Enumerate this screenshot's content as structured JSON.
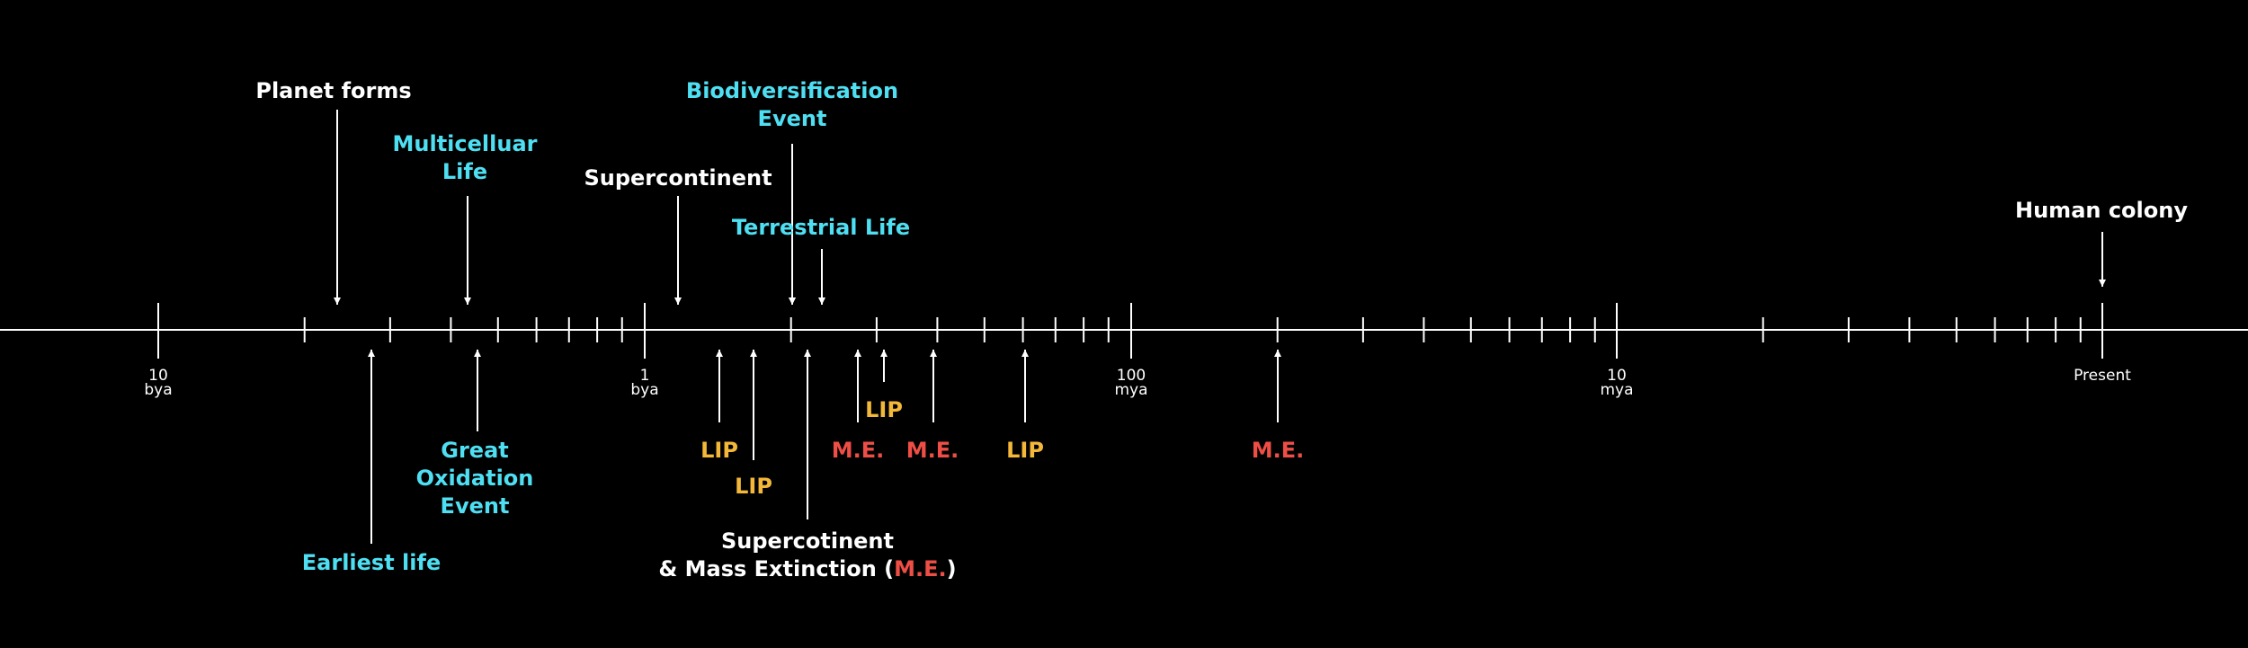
{
  "colors": {
    "background": "#000000",
    "axis": "#ffffff",
    "white": "#ffffff",
    "cyan": "#4fdff2",
    "yellow": "#f3b83a",
    "red": "#ee4e45"
  },
  "axis_labels": [
    {
      "line1": "10",
      "line2": "bya"
    },
    {
      "line1": "1",
      "line2": "bya"
    },
    {
      "line1": "100",
      "line2": "mya"
    },
    {
      "line1": "10",
      "line2": "mya"
    },
    {
      "line1": "Present",
      "line2": ""
    }
  ],
  "events_above": [
    {
      "text": "Planet forms",
      "color": "white"
    },
    {
      "text": "Multicelluar\nLife",
      "color": "cyan"
    },
    {
      "text": "Supercontinent",
      "color": "white"
    },
    {
      "text": "Biodiversification\nEvent",
      "color": "cyan"
    },
    {
      "text": "Terrestrial Life",
      "color": "cyan"
    },
    {
      "text": "Human colony",
      "color": "white"
    }
  ],
  "events_below": [
    {
      "text": "Earliest life",
      "color": "cyan"
    },
    {
      "text": "Great\nOxidation\nEvent",
      "color": "cyan"
    },
    {
      "text": "LIP",
      "color": "yellow"
    },
    {
      "text": "LIP",
      "color": "yellow"
    },
    {
      "text": "M.E.",
      "color": "red"
    },
    {
      "text": "LIP",
      "color": "yellow"
    },
    {
      "text": "M.E.",
      "color": "red"
    },
    {
      "text": "LIP",
      "color": "yellow"
    },
    {
      "text": "M.E.",
      "color": "red"
    }
  ],
  "supercontinent_me": {
    "line1": "Supercotinent",
    "line2_prefix": "& Mass Extinction (",
    "line2_highlight": "M.E.",
    "line2_suffix": ")"
  }
}
